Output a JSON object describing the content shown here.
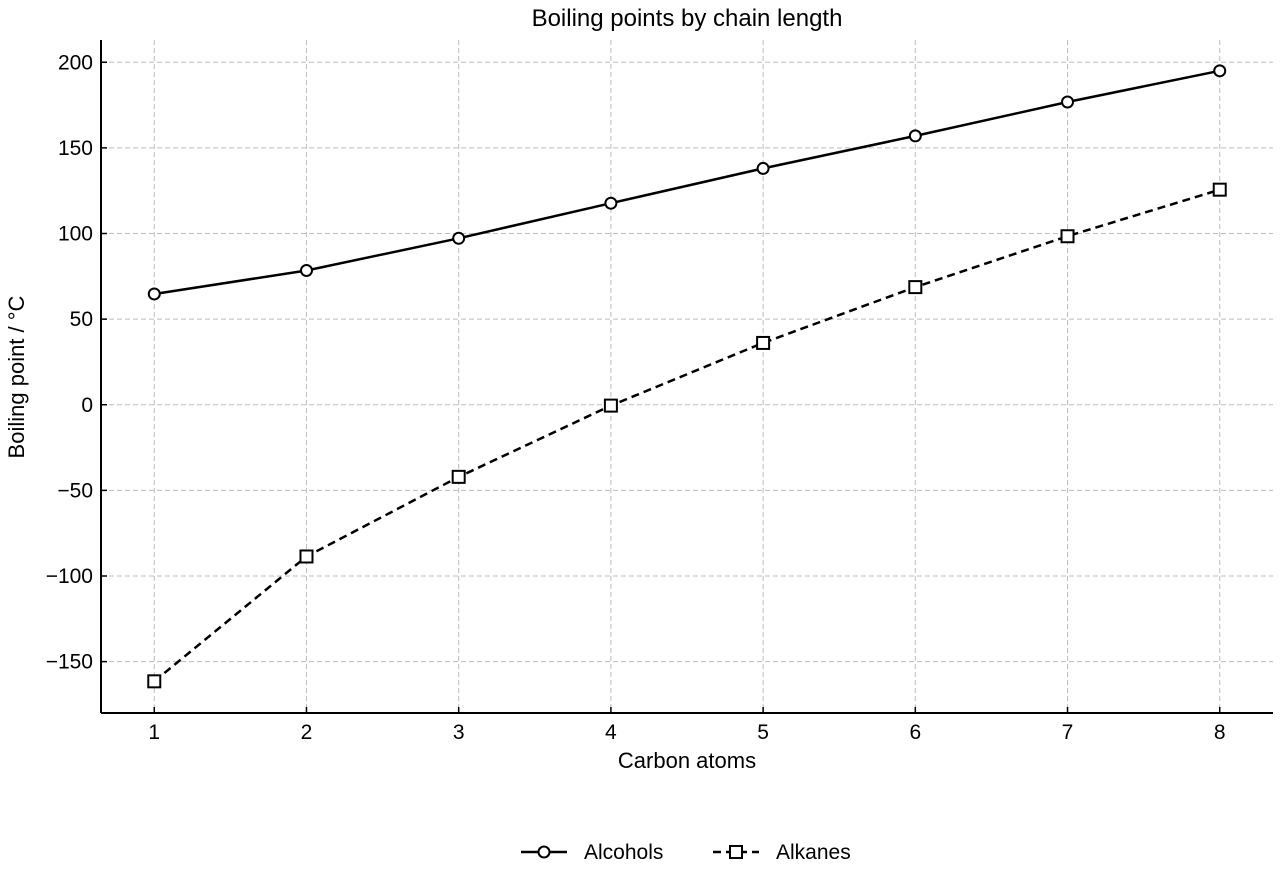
{
  "chart_data": {
    "type": "line",
    "title": "Boiling points by chain length",
    "xlabel": "Carbon atoms",
    "ylabel": "Boiling point / °C",
    "x": [
      1,
      2,
      3,
      4,
      5,
      6,
      7,
      8
    ],
    "x_ticks": [
      "1",
      "2",
      "3",
      "4",
      "5",
      "6",
      "7",
      "8"
    ],
    "y_ticks": [
      "200",
      "150",
      "100",
      "50",
      "0",
      "−50",
      "−100",
      "−150"
    ],
    "xlim": [
      0.65,
      8.35
    ],
    "ylim": [
      -180,
      213
    ],
    "grid": true,
    "legend_position": "bottom-center",
    "series": [
      {
        "name": "Alcohols",
        "values": [
          64.7,
          78.4,
          97.2,
          117.7,
          138.0,
          157.0,
          176.8,
          195.0
        ],
        "marker": "circle",
        "line_style": "solid",
        "color": "#000000"
      },
      {
        "name": "Alkanes",
        "values": [
          -161.5,
          -88.6,
          -42.1,
          -0.5,
          36.1,
          68.7,
          98.4,
          125.6
        ],
        "marker": "square",
        "line_style": "dashed",
        "color": "#000000"
      }
    ]
  }
}
